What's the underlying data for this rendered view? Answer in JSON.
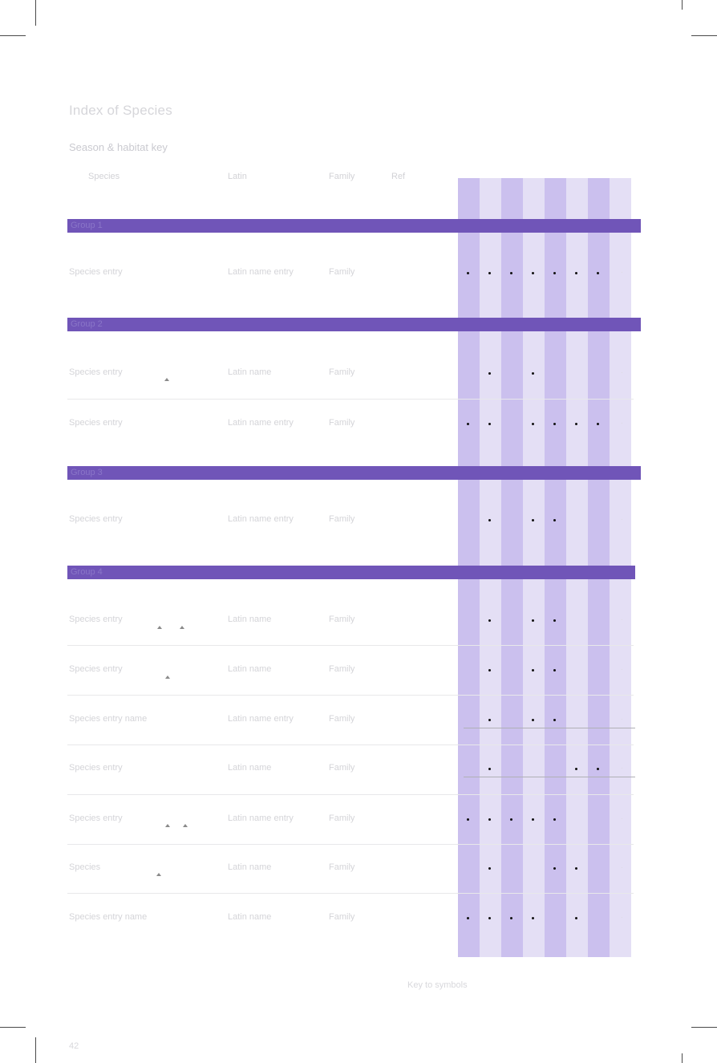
{
  "page": {
    "title": "Index of Species",
    "subtitle": "Season & habitat key"
  },
  "columns": {
    "name": "Species",
    "latin": "Latin",
    "family": "Family",
    "code": "Ref"
  },
  "sections": [
    {
      "label": "Group 1",
      "rows": [
        {
          "name": "Species entry",
          "latin": "Latin name entry",
          "family": "Family",
          "marks": [
            1,
            1,
            1,
            1,
            1,
            1,
            1,
            0
          ]
        }
      ]
    },
    {
      "label": "Group 2",
      "rows": [
        {
          "name": "Species entry",
          "latin": "Latin name",
          "family": "Family",
          "marks": [
            0,
            1,
            0,
            1,
            0,
            0,
            0,
            0
          ]
        },
        {
          "name": "Species entry",
          "latin": "Latin name entry",
          "family": "Family",
          "marks": [
            1,
            1,
            0,
            1,
            1,
            1,
            1,
            0
          ]
        }
      ]
    },
    {
      "label": "Group 3",
      "rows": [
        {
          "name": "Species entry",
          "latin": "Latin name entry",
          "family": "Family",
          "marks": [
            0,
            1,
            0,
            1,
            1,
            0,
            0,
            0
          ]
        }
      ]
    },
    {
      "label": "Group 4",
      "rows": [
        {
          "name": "Species entry",
          "latin": "Latin name",
          "family": "Family",
          "marks": [
            0,
            1,
            0,
            1,
            1,
            0,
            0,
            0
          ]
        },
        {
          "name": "Species entry",
          "latin": "Latin name",
          "family": "Family",
          "marks": [
            0,
            1,
            0,
            1,
            1,
            0,
            0,
            0
          ]
        },
        {
          "name": "Species entry name",
          "latin": "Latin name entry",
          "family": "Family",
          "marks": [
            0,
            1,
            0,
            1,
            1,
            0,
            0,
            0
          ]
        },
        {
          "name": "Species entry",
          "latin": "Latin name",
          "family": "Family",
          "marks": [
            0,
            1,
            0,
            0,
            0,
            1,
            1,
            0
          ]
        },
        {
          "name": "Species entry",
          "latin": "Latin name entry",
          "family": "Family",
          "marks": [
            1,
            1,
            1,
            1,
            1,
            0,
            0,
            0
          ]
        },
        {
          "name": "Species",
          "latin": "Latin name",
          "family": "Family",
          "marks": [
            0,
            1,
            0,
            0,
            1,
            1,
            0,
            0
          ]
        },
        {
          "name": "Species entry name",
          "latin": "Latin name",
          "family": "Family",
          "marks": [
            1,
            1,
            1,
            1,
            0,
            1,
            0,
            0
          ]
        }
      ]
    }
  ],
  "footer": {
    "note": "Key to symbols",
    "page_number": "42"
  },
  "colors": {
    "band": "#7055b8",
    "stripe_dark": "#cbc0ee",
    "stripe_light": "#e4dff5",
    "dot": "#111111"
  }
}
